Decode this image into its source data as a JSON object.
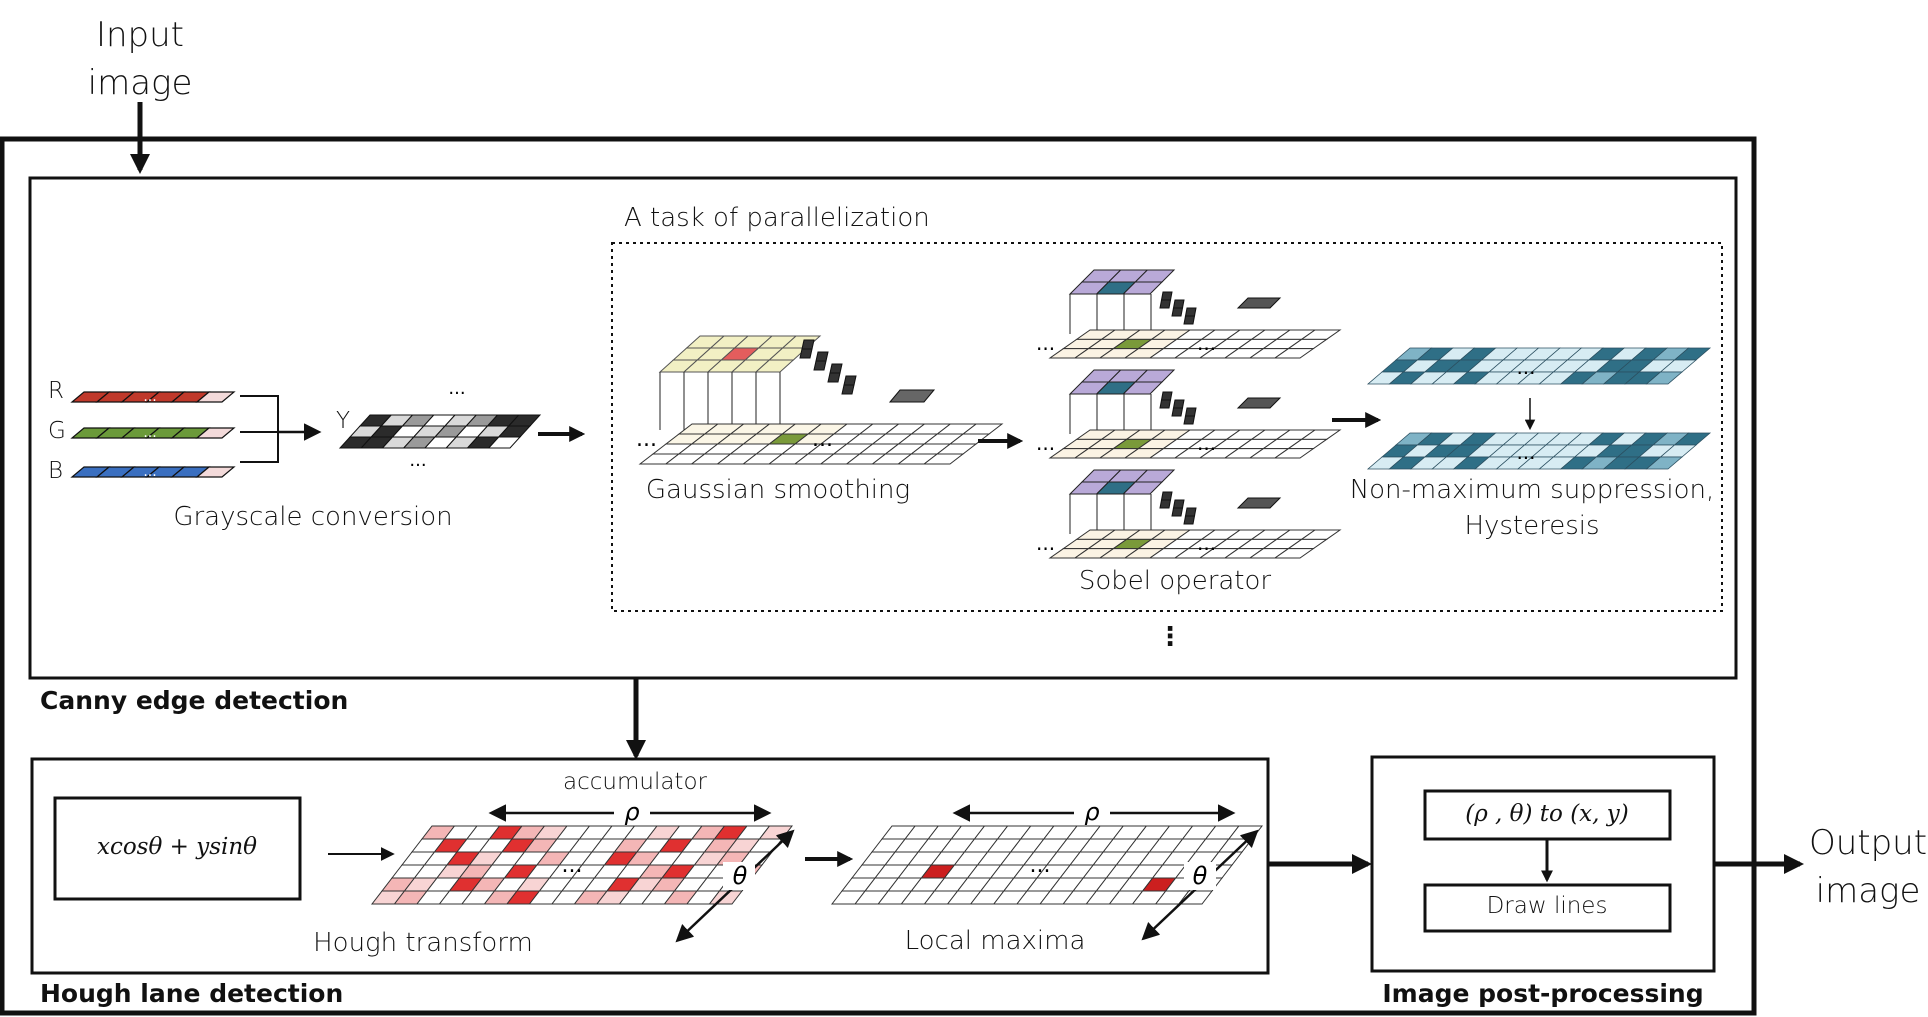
{
  "io": {
    "input_line1": "Input",
    "input_line2": "image",
    "output_line1": "Output",
    "output_line2": "image"
  },
  "canny": {
    "section_label": "Canny edge detection",
    "parallel_label": "A task of parallelization",
    "channels": [
      "R",
      "G",
      "B"
    ],
    "y_label": "Y",
    "grayscale_label": "Grayscale conversion",
    "gaussian_label": "Gaussian smoothing",
    "sobel_label": "Sobel operator",
    "nms_line1": "Non-maximum suppression,",
    "nms_line2": "Hysteresis",
    "ellipsis": "...",
    "vertical_ellipsis": "⋮"
  },
  "hough": {
    "section_label": "Hough lane detection",
    "formula": "xcosθ + ysinθ",
    "accumulator_label": "accumulator",
    "rho": "ρ",
    "theta": "θ",
    "hough_transform_label": "Hough transform",
    "local_maxima_label": "Local maxima"
  },
  "post": {
    "section_label": "Image post-processing",
    "convert_label": "(ρ , θ) to (x, y)",
    "draw_label": "Draw lines"
  },
  "colors": {
    "red_channel": "#c0392b",
    "green_channel": "#6b9a3a",
    "blue_channel": "#3a6fc0",
    "gaussian_yellow": "#f2f0c4",
    "gaussian_center": "#e35d5d",
    "sobel_purple": "#b9a9d8",
    "edge_teal": "#2f6f86",
    "edge_light": "#d7ecf3",
    "accumulator_red": "#e03030",
    "accumulator_pink": "#f4b6b6"
  }
}
